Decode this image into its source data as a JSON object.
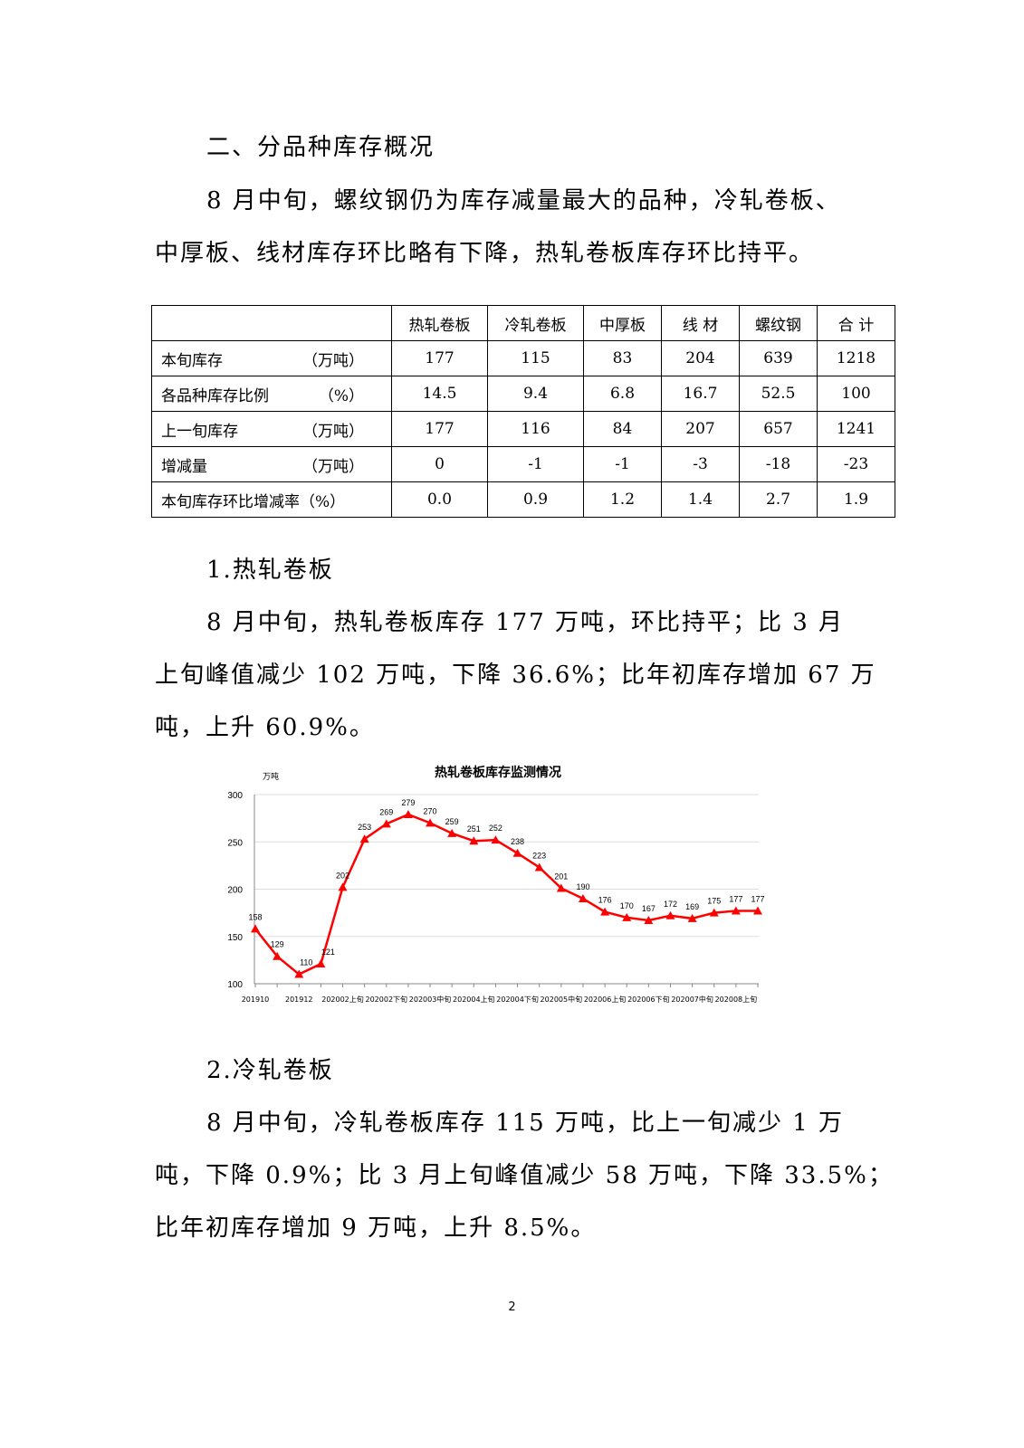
{
  "section_title": "二、分品种库存概况",
  "intro_lines": [
    "8 月中旬，螺纹钢仍为库存减量最大的品种，冷轧卷板、",
    "中厚板、线材库存环比略有下降，热轧卷板库存环比持平。"
  ],
  "table": {
    "headers": [
      "",
      "热轧卷板",
      "冷轧卷板",
      "中厚板",
      "线 材",
      "螺纹钢",
      "合 计"
    ],
    "rows": [
      {
        "label": "本旬库存",
        "unit": "（万吨）",
        "values": [
          "177",
          "115",
          "83",
          "204",
          "639",
          "1218"
        ]
      },
      {
        "label": "各品种库存比例",
        "unit": "（%）",
        "values": [
          "14.5",
          "9.4",
          "6.8",
          "16.7",
          "52.5",
          "100"
        ]
      },
      {
        "label": "上一旬库存",
        "unit": "（万吨）",
        "values": [
          "177",
          "116",
          "84",
          "207",
          "657",
          "1241"
        ]
      },
      {
        "label": "增减量",
        "unit": "（万吨）",
        "values": [
          "0",
          "-1",
          "-1",
          "-3",
          "-18",
          "-23"
        ]
      },
      {
        "label": "本旬库存环比增减率（%）",
        "unit": "",
        "values": [
          "0.0",
          "0.9",
          "1.2",
          "1.4",
          "2.7",
          "1.9"
        ]
      }
    ]
  },
  "sec1": {
    "title": "1.热轧卷板",
    "lines": [
      "8 月中旬，热轧卷板库存 177 万吨，环比持平；比 3 月",
      "上旬峰值减少 102 万吨，下降 36.6%；比年初库存增加 67 万",
      "吨，上升 60.9%。"
    ]
  },
  "chart_data": {
    "type": "line",
    "title": "热轧卷板库存监测情况",
    "ylabel": "万吨",
    "ylim": [
      100,
      300
    ],
    "yticks": [
      100,
      150,
      200,
      250,
      300
    ],
    "x_tick_labels": [
      "201910",
      "201912",
      "202002上旬",
      "202002下旬",
      "202003中旬",
      "202004上旬",
      "202004下旬",
      "202005中旬",
      "202006上旬",
      "202006下旬",
      "202007中旬",
      "202008上旬"
    ],
    "values": [
      158,
      129,
      110,
      121,
      202,
      253,
      269,
      279,
      270,
      259,
      251,
      252,
      238,
      223,
      201,
      190,
      176,
      170,
      167,
      172,
      169,
      175,
      177,
      177
    ],
    "color": "#ff0000",
    "marker": "triangle",
    "grid": true
  },
  "sec2": {
    "title": "2.冷轧卷板",
    "lines": [
      "8 月中旬，冷轧卷板库存 115 万吨，比上一旬减少 1 万",
      "吨，下降 0.9%；比 3 月上旬峰值减少 58 万吨，下降 33.5%；",
      "比年初库存增加 9 万吨，上升 8.5%。"
    ]
  },
  "page_number": "2"
}
